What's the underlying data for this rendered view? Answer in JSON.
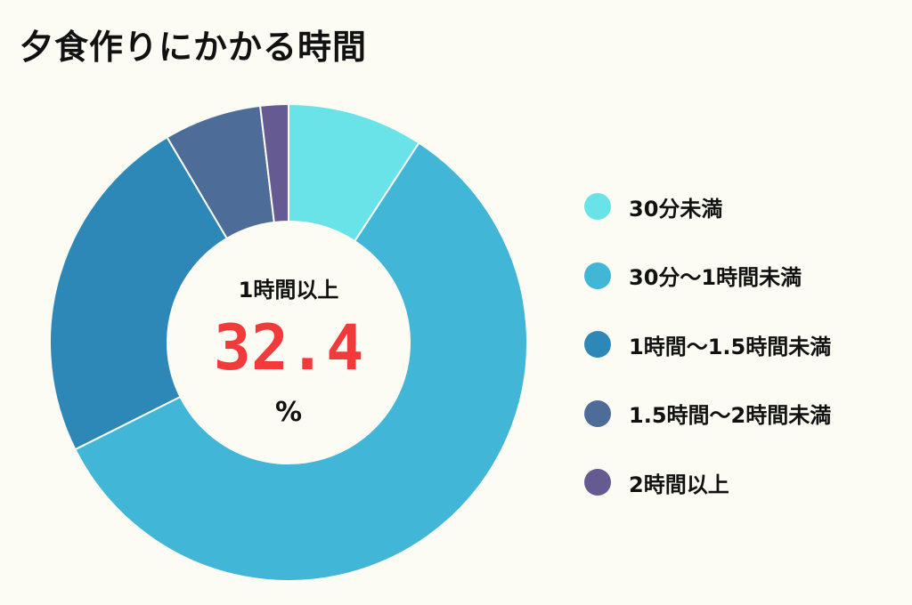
{
  "title": "夕食作りにかかる時間",
  "center": {
    "label": "1時間以上",
    "value": "32.4",
    "unit": "%"
  },
  "chart_data": {
    "type": "pie",
    "donut": true,
    "title": "夕食作りにかかる時間",
    "categories": [
      "30分未満",
      "30分〜1時間未満",
      "1時間〜1.5時間未満",
      "1.5時間〜2時間未満",
      "2時間以上"
    ],
    "values": [
      9.2,
      58.4,
      23.9,
      6.6,
      1.9
    ],
    "colors": [
      "#6ae3e8",
      "#42b6d6",
      "#2d88b8",
      "#4d6d98",
      "#665a92"
    ],
    "legend_position": "right",
    "unit": "%"
  }
}
